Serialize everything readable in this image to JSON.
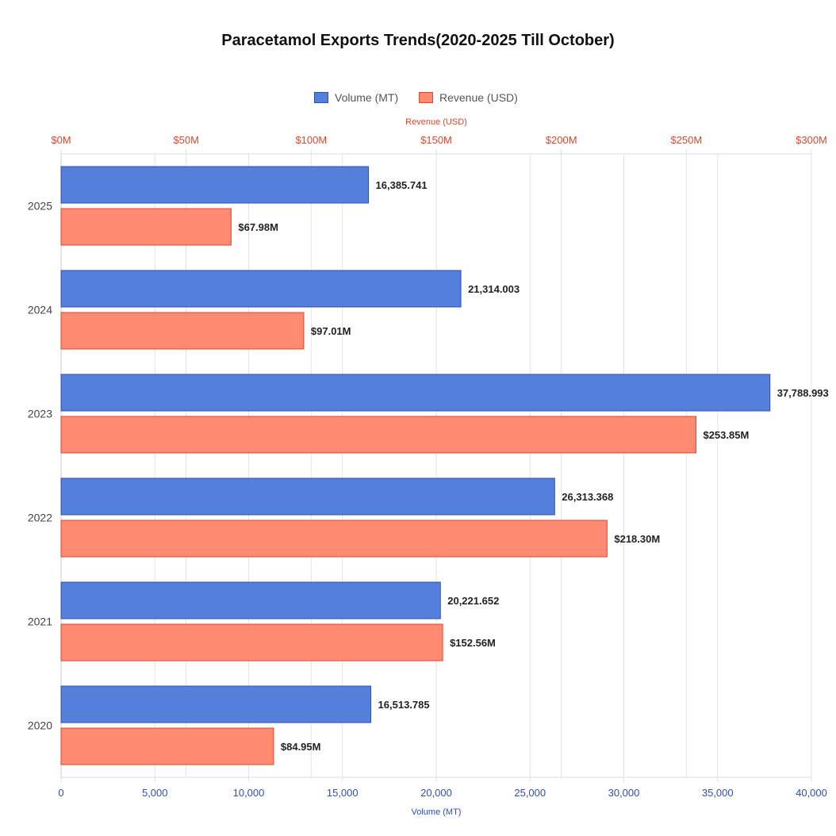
{
  "chart_data": {
    "type": "bar",
    "orientation": "horizontal",
    "title": "Paracetamol Exports Trends(2020-2025 Till October)",
    "categories": [
      "2025",
      "2024",
      "2023",
      "2022",
      "2021",
      "2020"
    ],
    "series": [
      {
        "name": "Volume (MT)",
        "axis": "bottom",
        "values": [
          16385.741,
          21314.003,
          37788.993,
          26313.368,
          20221.652,
          16513.785
        ],
        "labels": [
          "16,385.741",
          "21,314.003",
          "37,788.993",
          "26,313.368",
          "20,221.652",
          "16,513.785"
        ],
        "color": "#5480DC",
        "border": "#2E4FAF"
      },
      {
        "name": "Revenue (USD)",
        "axis": "top",
        "values": [
          67.98,
          97.01,
          253.85,
          218.3,
          152.56,
          84.95
        ],
        "labels": [
          "$67.98M",
          "$97.01M",
          "$253.85M",
          "$218.30M",
          "$152.56M",
          "$84.95M"
        ],
        "color": "#FF8A72",
        "border": "#E0462A"
      }
    ],
    "x_bottom": {
      "label": "Volume (MT)",
      "range": [
        0,
        40000
      ],
      "ticks": [
        "0",
        "5,000",
        "10,000",
        "15,000",
        "20,000",
        "25,000",
        "30,000",
        "35,000",
        "40,000"
      ],
      "color": "#2E4FAF"
    },
    "x_top": {
      "label": "Revenue (USD)",
      "range": [
        0,
        300
      ],
      "ticks": [
        "$0M",
        "$50M",
        "$100M",
        "$150M",
        "$200M",
        "$250M",
        "$300M"
      ],
      "color": "#E0462A"
    },
    "grid": true,
    "legend": "top"
  }
}
